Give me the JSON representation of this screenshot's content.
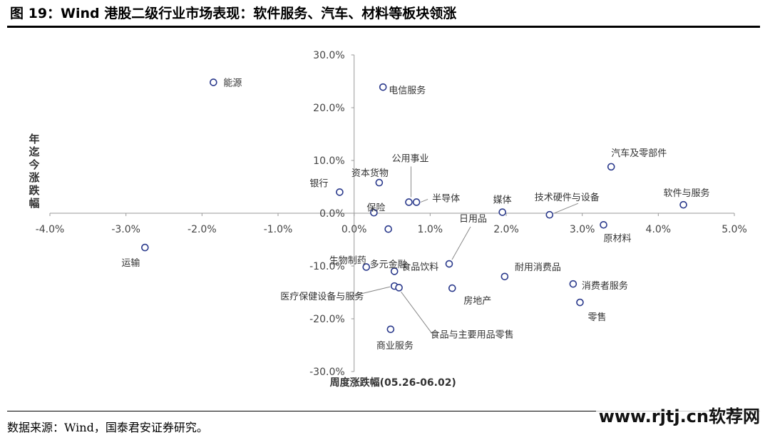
{
  "header": {
    "title": "图 19：Wind 港股二级行业市场表现：软件服务、汽车、材料等板块领涨"
  },
  "footer": {
    "source": "数据来源：Wind，国泰君安证券研究。"
  },
  "watermark": {
    "text": "www.rjtj.cn软荐网"
  },
  "chart_data": {
    "type": "scatter",
    "xlabel": "周度涨跌幅(05.26-06.02)",
    "ylabel": "年迄今涨跌幅",
    "xlim": [
      -4.0,
      5.0
    ],
    "ylim": [
      -30.0,
      30.0
    ],
    "x_ticks": [
      "-4.0%",
      "-3.0%",
      "-2.0%",
      "-1.0%",
      "0.0%",
      "1.0%",
      "2.0%",
      "3.0%",
      "4.0%",
      "5.0%"
    ],
    "y_ticks": [
      "30.0%",
      "20.0%",
      "10.0%",
      "0.0%",
      "-10.0%",
      "-20.0%",
      "-30.0%"
    ],
    "grid": false,
    "marker_color": "#2b3a8c",
    "points": [
      {
        "label": "能源",
        "x": -1.85,
        "y": 24.8
      },
      {
        "label": "电信服务",
        "x": 0.38,
        "y": 23.9
      },
      {
        "label": "汽车及零部件",
        "x": 3.38,
        "y": 8.8
      },
      {
        "label": "软件与服务",
        "x": 4.33,
        "y": 1.6
      },
      {
        "label": "银行",
        "x": -0.19,
        "y": 4.0
      },
      {
        "label": "资本货物",
        "x": 0.33,
        "y": 5.8
      },
      {
        "label": "公用事业",
        "x": 0.72,
        "y": 2.1
      },
      {
        "label": "半导体",
        "x": 0.82,
        "y": 2.1
      },
      {
        "label": "保险",
        "x": 0.26,
        "y": 0.1
      },
      {
        "label": "媒体",
        "x": 1.95,
        "y": 0.2
      },
      {
        "label": "技术硬件与设备",
        "x": 2.57,
        "y": -0.3
      },
      {
        "label": "原材料",
        "x": 3.28,
        "y": -2.2
      },
      {
        "label": "多元金融",
        "x": 0.45,
        "y": -3.0
      },
      {
        "label": "日用品",
        "x": 1.25,
        "y": -9.6
      },
      {
        "label": "运输",
        "x": -2.75,
        "y": -6.5
      },
      {
        "label": "生物制药",
        "x": 0.16,
        "y": -10.2
      },
      {
        "label": "食品饮料",
        "x": 0.53,
        "y": -11.0
      },
      {
        "label": "耐用消费品",
        "x": 1.98,
        "y": -12.0
      },
      {
        "label": "消费者服务",
        "x": 2.88,
        "y": -13.4
      },
      {
        "label": "医疗保健设备与服务",
        "x": 0.53,
        "y": -13.8
      },
      {
        "label": "食品与主要用品零售",
        "x": 0.59,
        "y": -14.1
      },
      {
        "label": "房地产",
        "x": 1.29,
        "y": -14.2
      },
      {
        "label": "零售",
        "x": 2.97,
        "y": -16.9
      },
      {
        "label": "商业服务",
        "x": 0.48,
        "y": -22.0
      }
    ]
  }
}
